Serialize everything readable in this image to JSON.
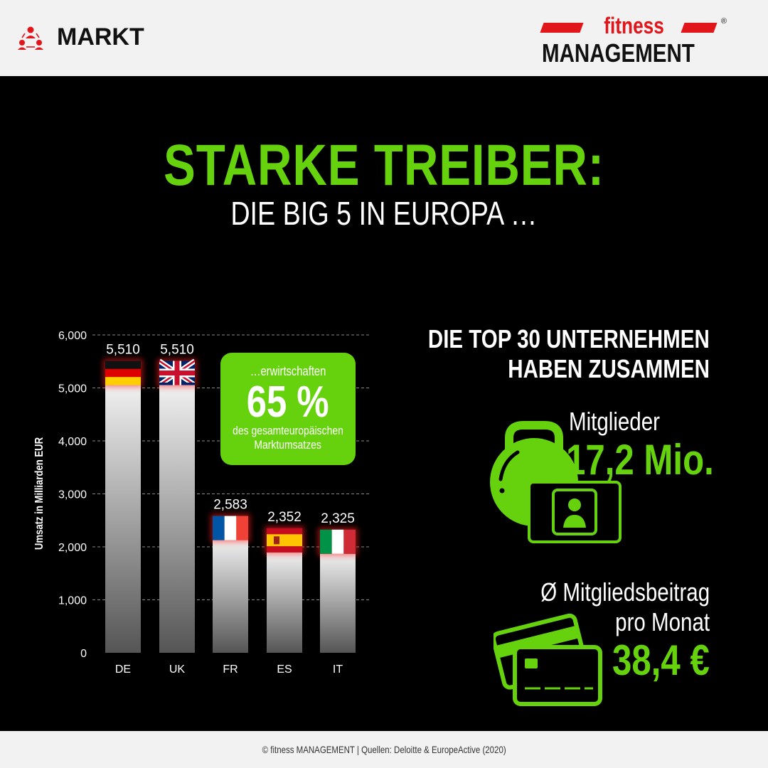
{
  "header": {
    "section_label": "MARKT",
    "logo_top": "fitness",
    "logo_bottom": "MANAGEMENT",
    "logo_reg": "®"
  },
  "title": {
    "main": "STARKE TREIBER:",
    "sub": "DIE BIG 5 IN EUROPA …"
  },
  "chart_data": {
    "type": "bar",
    "categories": [
      "DE",
      "UK",
      "FR",
      "ES",
      "IT"
    ],
    "values": [
      5510,
      5510,
      2583,
      2352,
      2325
    ],
    "value_labels": [
      "5,510",
      "5,510",
      "2,583",
      "2,352",
      "2,325"
    ],
    "flags": [
      "flag-germany",
      "flag-united-kingdom",
      "flag-france",
      "flag-spain",
      "flag-italy"
    ],
    "ylabel": "Umsatz in Milliarden EUR",
    "ylim": [
      0,
      6000
    ],
    "yticks": [
      0,
      1000,
      2000,
      3000,
      4000,
      5000,
      6000
    ],
    "ytick_labels": [
      "0",
      "1,000",
      "2,000",
      "3,000",
      "4,000",
      "5,000",
      "6,000"
    ],
    "grid": true,
    "bar_color": "gradient white-to-grey",
    "annotation": {
      "line1": "…erwirtschaften",
      "value": "65 %",
      "line2": "des gesamteuropäischen",
      "line3": "Marktumsatzes"
    }
  },
  "stats": {
    "heading_line1": "DIE TOP 30 UNTERNEHMEN",
    "heading_line2": "HABEN ZUSAMMEN",
    "members_label": "Mitglieder",
    "members_value": "17,2 Mio.",
    "fee_label_line1": "Ø Mitgliedsbeitrag",
    "fee_label_line2": "pro Monat",
    "fee_value": "38,4 €"
  },
  "footer": {
    "text": "© fitness MANAGEMENT  |  Quellen: Deloitte & EuropeActive (2020)"
  },
  "colors": {
    "accent_green": "#66d20e",
    "brand_red": "#e0161b",
    "background": "#000000",
    "bar_light": "#f0f0f0",
    "bar_dark": "#5a5a5a"
  }
}
